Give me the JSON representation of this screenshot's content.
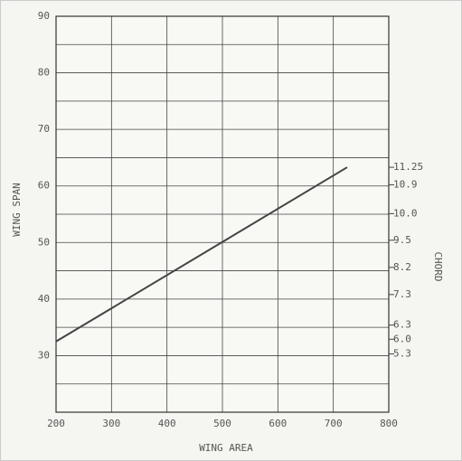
{
  "chart_data": {
    "type": "line",
    "x_label": "WING AREA",
    "y_label": "WING SPAN",
    "y2_label": "CHORD",
    "x": [
      200,
      725
    ],
    "values": [
      32.5,
      63.3
    ],
    "color": "#444444",
    "xlim": [
      200,
      800
    ],
    "xticks": [
      200,
      300,
      400,
      500,
      600,
      700,
      800
    ],
    "ylim": [
      20,
      90
    ],
    "yticks": [
      30,
      40,
      50,
      60,
      70,
      80,
      90
    ],
    "yminor_ticks": [
      20,
      25,
      35,
      45,
      55,
      65,
      75,
      85
    ],
    "grid": true,
    "chord_marks": [
      {
        "span": 63.3,
        "label": "11.25"
      },
      {
        "span": 60.2,
        "label": "10.9"
      },
      {
        "span": 55.1,
        "label": "10.0"
      },
      {
        "span": 50.4,
        "label": "9.5"
      },
      {
        "span": 45.6,
        "label": "8.2"
      },
      {
        "span": 40.8,
        "label": "7.3"
      },
      {
        "span": 35.4,
        "label": "6.3"
      },
      {
        "span": 32.9,
        "label": "6.0"
      },
      {
        "span": 30.3,
        "label": "5.3"
      }
    ]
  }
}
